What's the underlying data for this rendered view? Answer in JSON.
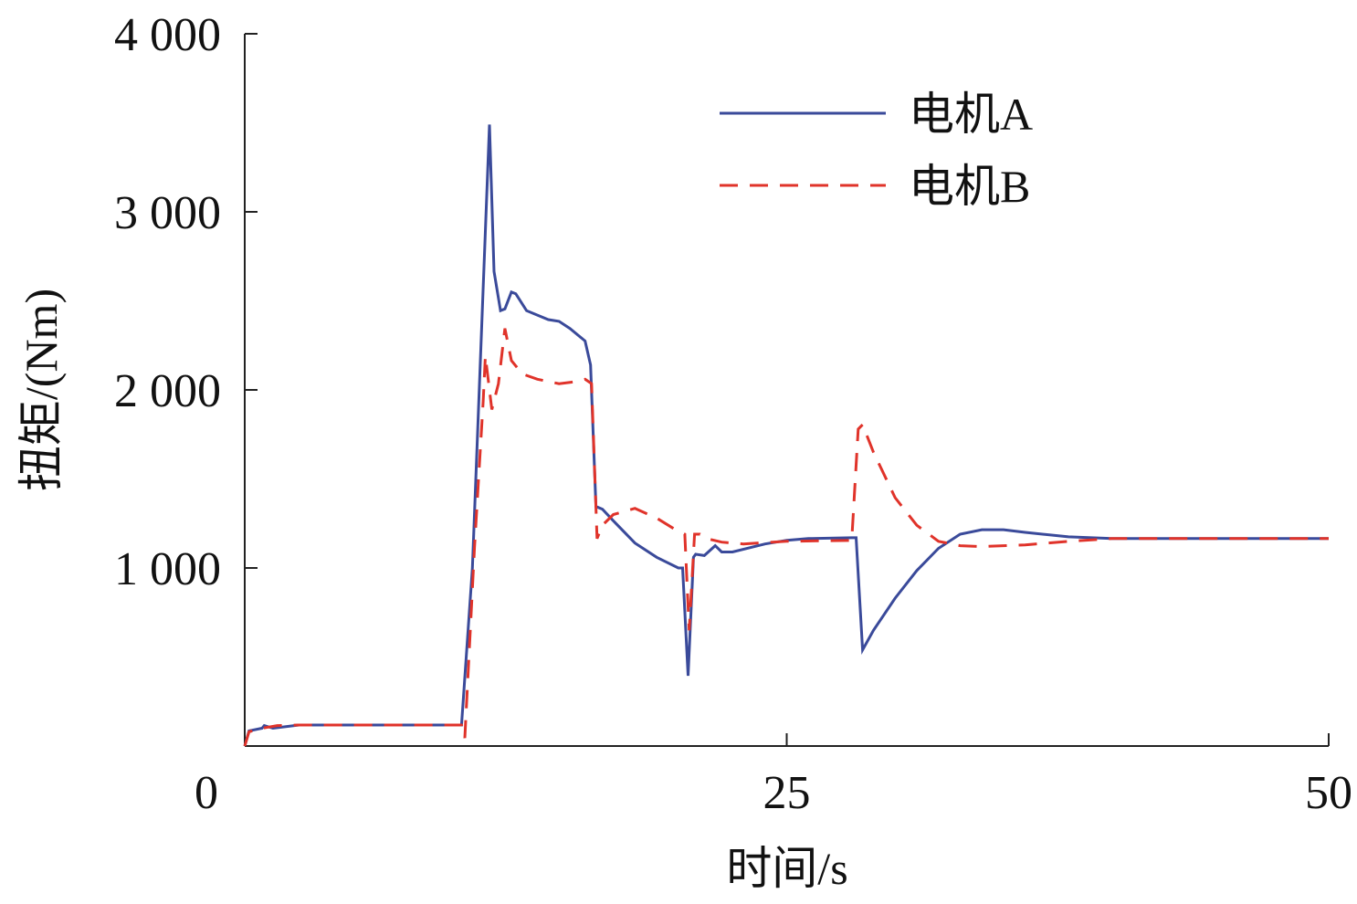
{
  "chart_data": {
    "type": "line",
    "xlabel": "时间/s",
    "ylabel": "扭矩/(Nm)",
    "xlim": [
      0,
      50
    ],
    "xticks": [
      0,
      25,
      50
    ],
    "ylim": [
      0,
      4000
    ],
    "yticks": [
      {
        "value": 1000,
        "label": "1 000"
      },
      {
        "value": 2000,
        "label": "2 000"
      },
      {
        "value": 3000,
        "label": "3 000"
      },
      {
        "value": 4000,
        "label": "4 000"
      }
    ],
    "legend": "upper right",
    "series": [
      {
        "name": "电机A",
        "color": "#3a4a9a",
        "dash": false,
        "x": [
          0,
          0.2,
          0.8,
          0.9,
          1.3,
          2.5,
          10.0,
          10.5,
          11.29,
          11.5,
          11.8,
          12.0,
          12.3,
          12.5,
          13.0,
          14.0,
          14.5,
          15.0,
          15.7,
          15.95,
          16.2,
          16.5,
          17.0,
          18.0,
          19.0,
          20.0,
          20.2,
          20.45,
          20.7,
          20.8,
          21.2,
          21.7,
          22.0,
          22.5,
          24.0,
          25.0,
          26.0,
          28.0,
          28.2,
          28.5,
          29.0,
          30.0,
          31.0,
          32.0,
          33.0,
          34.0,
          35.0,
          36.0,
          38.0,
          40.0,
          45.0,
          50.0
        ],
        "values": [
          0,
          85,
          100,
          115,
          100,
          118,
          118,
          1000,
          3490,
          2665,
          2445,
          2455,
          2550,
          2540,
          2445,
          2395,
          2385,
          2345,
          2275,
          2140,
          1345,
          1330,
          1265,
          1140,
          1060,
          1000,
          1000,
          395,
          1060,
          1077,
          1070,
          1125,
          1090,
          1090,
          1135,
          1155,
          1165,
          1170,
          1170,
          540,
          650,
          830,
          985,
          1110,
          1190,
          1215,
          1215,
          1200,
          1175,
          1165,
          1165,
          1165
        ]
      },
      {
        "name": "电机B",
        "color": "#e0332a",
        "dash": true,
        "x": [
          0,
          0.2,
          0.8,
          1.5,
          2.5,
          10.0,
          10.15,
          10.6,
          11.0,
          11.1,
          11.4,
          11.7,
          12.0,
          12.3,
          12.8,
          13.5,
          14.5,
          15.2,
          15.7,
          16.0,
          16.25,
          16.5,
          17.0,
          18.0,
          19.0,
          20.0,
          20.3,
          20.5,
          20.75,
          21.0,
          21.3,
          22.0,
          23.0,
          25.0,
          28.0,
          28.3,
          28.5,
          29.0,
          30.0,
          31.0,
          32.0,
          33.0,
          34.0,
          36.0,
          38.0,
          40.0,
          50.0
        ],
        "values": [
          0,
          80,
          100,
          115,
          118,
          118,
          45,
          1115,
          1935,
          2190,
          1890,
          2035,
          2345,
          2165,
          2090,
          2060,
          2035,
          2045,
          2060,
          2035,
          1165,
          1240,
          1300,
          1335,
          1280,
          1205,
          1190,
          650,
          1190,
          1190,
          1165,
          1145,
          1135,
          1150,
          1155,
          1780,
          1805,
          1650,
          1395,
          1240,
          1150,
          1125,
          1120,
          1130,
          1150,
          1165,
          1165
        ]
      }
    ]
  }
}
